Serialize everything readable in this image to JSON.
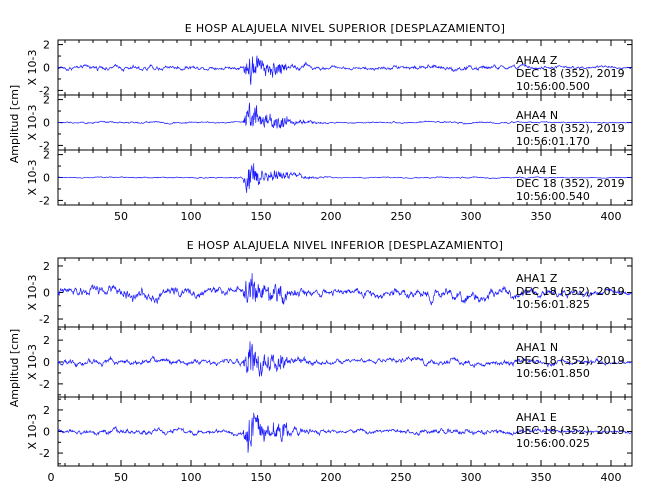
{
  "colors": {
    "trace": "#1a1aff",
    "axis": "#000000",
    "background": "#ffffff"
  },
  "chart_data": [
    {
      "type": "line",
      "title": "E HOSP ALAJUELA NIVEL SUPERIOR [DESPLAZAMIENTO]",
      "ylabel": "Amplitud [cm]",
      "xlim": [
        5,
        415
      ],
      "x_ticks": [
        50,
        100,
        150,
        200,
        250,
        300,
        350,
        400
      ],
      "panels": [
        {
          "unit": "X 10-3",
          "ylim": [
            -2.4,
            2.4
          ],
          "y_ticks": [
            -2,
            0,
            2
          ],
          "annotation": [
            "AHA4   Z",
            "DEC 18 (352), 2019",
            "10:56:00.500"
          ],
          "envelope": {
            "base": 0.55,
            "peak": 2.3,
            "t_peak": 142
          }
        },
        {
          "unit": "X 10-3",
          "ylim": [
            -2.4,
            2.4
          ],
          "y_ticks": [
            -2,
            0,
            2
          ],
          "annotation": [
            "AHA4   N",
            "DEC 18 (352), 2019",
            "10:56:01.170"
          ],
          "envelope": {
            "base": 0.2,
            "peak": 2.3,
            "t_peak": 142
          }
        },
        {
          "unit": "X 10-3",
          "ylim": [
            -2.4,
            2.4
          ],
          "y_ticks": [
            -2,
            0,
            2
          ],
          "annotation": [
            "AHA4   E",
            "DEC 18 (352), 2019",
            "10:56:00.540"
          ],
          "envelope": {
            "base": 0.15,
            "peak": 2.3,
            "t_peak": 142
          }
        }
      ]
    },
    {
      "type": "line",
      "title": "E HOSP ALAJUELA NIVEL INFERIOR [DESPLAZAMIENTO]",
      "ylabel": "Amplitud [cm]",
      "xlim": [
        5,
        415
      ],
      "x_ticks": [
        0,
        50,
        100,
        150,
        200,
        250,
        300,
        350,
        400
      ],
      "panels": [
        {
          "unit": "X 10-3",
          "ylim": [
            -2.6,
            2.6
          ],
          "y_ticks": [
            -2,
            0,
            2
          ],
          "annotation": [
            "AHA1   Z",
            "DEC 18 (352), 2019",
            "10:56:01.825"
          ],
          "envelope": {
            "base": 1.1,
            "peak": 2.4,
            "t_peak": 142
          }
        },
        {
          "unit": "X 10-3",
          "ylim": [
            -3.2,
            3.2
          ],
          "y_ticks": [
            -2,
            0,
            2
          ],
          "annotation": [
            "AHA1   N",
            "DEC 18 (352), 2019",
            "10:56:01.850"
          ],
          "envelope": {
            "base": 0.8,
            "peak": 3.1,
            "t_peak": 142
          }
        },
        {
          "unit": "X 10-3",
          "ylim": [
            -3.2,
            3.2
          ],
          "y_ticks": [
            -2,
            0,
            2
          ],
          "annotation": [
            "AHA1   E",
            "DEC 18 (352), 2019",
            "10:56:00.025"
          ],
          "envelope": {
            "base": 0.7,
            "peak": 3.1,
            "t_peak": 142
          }
        }
      ]
    }
  ]
}
